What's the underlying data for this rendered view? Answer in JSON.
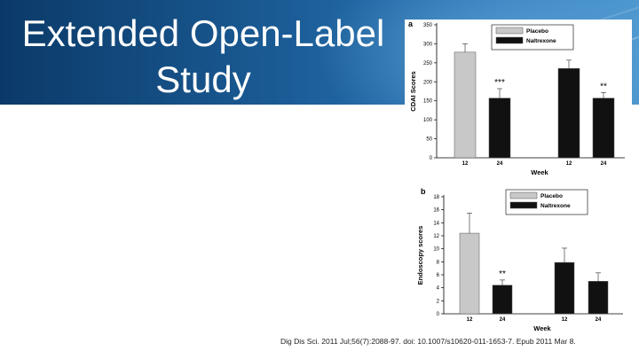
{
  "slide": {
    "title_line1": "Extended Open-Label",
    "title_line2": "Study",
    "citation": "Dig Dis Sci. 2011 Jul;56(7):2088-97. doi: 10.1007/s10620-011-1653-7. Epub 2011 Mar 8."
  },
  "colors": {
    "banner_dark": "#0b3a68",
    "banner_light": "#4e98cf",
    "placebo": "#c8c8c8",
    "naltrexone": "#111111"
  },
  "chart_data": [
    {
      "type": "bar",
      "panel_label": "a",
      "xlabel": "Week",
      "ylabel": "CDAI Scores",
      "ylim": [
        0,
        350
      ],
      "yticks": [
        0,
        50,
        100,
        150,
        200,
        250,
        300,
        350
      ],
      "categories": [
        "12",
        "24",
        "12",
        "24"
      ],
      "legend": [
        "Placebo",
        "Naltrexone"
      ],
      "legend_position": "top-right",
      "bars": [
        {
          "category": "12",
          "series": "Placebo",
          "value": 278,
          "error": 22
        },
        {
          "category": "24",
          "series": "Naltrexone",
          "value": 157,
          "error": 25
        },
        {
          "category": "12",
          "series": "Naltrexone",
          "value": 235,
          "error": 22
        },
        {
          "category": "24",
          "series": "Naltrexone",
          "value": 157,
          "error": 15
        }
      ],
      "annotations": [
        {
          "text": "***",
          "bar_index": 1
        },
        {
          "text": "**",
          "bar_index": 3
        }
      ]
    },
    {
      "type": "bar",
      "panel_label": "b",
      "xlabel": "Week",
      "ylabel": "Endoscopy scores",
      "ylim": [
        0,
        18
      ],
      "yticks": [
        0,
        2,
        4,
        6,
        8,
        10,
        12,
        14,
        16,
        18
      ],
      "categories": [
        "12",
        "24",
        "12",
        "24"
      ],
      "legend": [
        "Placebo",
        "Naltrexone"
      ],
      "legend_position": "top-right",
      "bars": [
        {
          "category": "12",
          "series": "Placebo",
          "value": 12.4,
          "error": 3.1
        },
        {
          "category": "24",
          "series": "Naltrexone",
          "value": 4.4,
          "error": 0.8
        },
        {
          "category": "12",
          "series": "Naltrexone",
          "value": 7.9,
          "error": 2.2
        },
        {
          "category": "24",
          "series": "Naltrexone",
          "value": 5.0,
          "error": 1.3
        }
      ],
      "annotations": [
        {
          "text": "**",
          "bar_index": 1
        }
      ]
    }
  ]
}
